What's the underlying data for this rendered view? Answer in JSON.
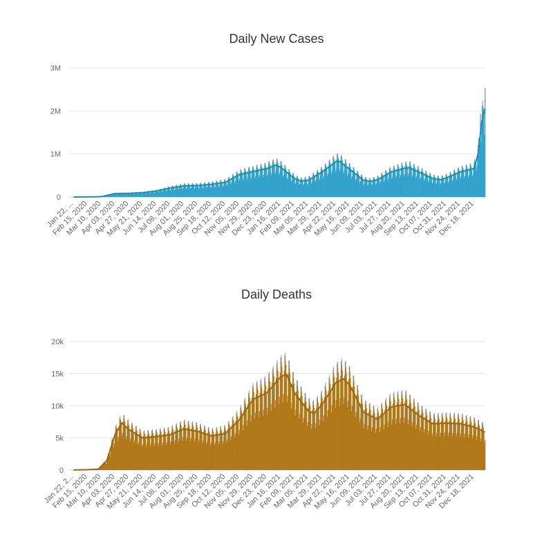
{
  "chart_data": [
    {
      "type": "bar",
      "title": "Daily New Cases",
      "xlabel": "",
      "ylabel": "",
      "ylim": [
        0,
        3000000
      ],
      "y_ticks": [
        "0",
        "1M",
        "2M",
        "3M"
      ],
      "y_tick_values": [
        0,
        1000000,
        2000000,
        3000000
      ],
      "x_tick_labels": [
        "Jan 22, ...",
        "Feb 15, 2020",
        "Mar 10, 2020",
        "Apr 03, 2020",
        "Apr 27, 2020",
        "May 21, 2020",
        "Jun 14, 2020",
        "Jul 08, 2020",
        "Aug 01, 2020",
        "Aug 25, 2020",
        "Sep 18, 2020",
        "Oct 12, 2020",
        "Nov 05, 2020",
        "Nov 29, 2020",
        "Dec 23, 2020",
        "Jan 16, 2021",
        "Feb 09, 2021",
        "Mar 05, 2021",
        "Mar 29, 2021",
        "Apr 22, 2021",
        "May 16, 2021",
        "Jun 09, 2021",
        "Jul 03, 2021",
        "Jul 27, 2021",
        "Aug 20, 2021",
        "Sep 13, 2021",
        "Oct 07, 2021",
        "Oct 31, 2021",
        "Nov 24, 2021",
        "Dec 18, 2021"
      ],
      "x_start": "Jan 22, 2020",
      "x_end": "Jan 06, 2022",
      "bar_color": "#33a3cc",
      "line_color": "#1b8fa8",
      "moving_average_keypoints": [
        [
          "Jan 22, 2020",
          500
        ],
        [
          "Feb 15, 2020",
          2000
        ],
        [
          "Mar 10, 2020",
          8000
        ],
        [
          "Apr 03, 2020",
          80000
        ],
        [
          "Apr 27, 2020",
          85000
        ],
        [
          "May 21, 2020",
          100000
        ],
        [
          "Jun 14, 2020",
          140000
        ],
        [
          "Jul 08, 2020",
          210000
        ],
        [
          "Aug 01, 2020",
          260000
        ],
        [
          "Aug 25, 2020",
          265000
        ],
        [
          "Sep 18, 2020",
          295000
        ],
        [
          "Oct 12, 2020",
          340000
        ],
        [
          "Nov 05, 2020",
          520000
        ],
        [
          "Nov 29, 2020",
          590000
        ],
        [
          "Dec 23, 2020",
          660000
        ],
        [
          "Jan 08, 2021",
          740000
        ],
        [
          "Jan 16, 2021",
          690000
        ],
        [
          "Feb 09, 2021",
          430000
        ],
        [
          "Feb 20, 2021",
          370000
        ],
        [
          "Mar 05, 2021",
          390000
        ],
        [
          "Mar 29, 2021",
          580000
        ],
        [
          "Apr 22, 2021",
          820000
        ],
        [
          "Apr 28, 2021",
          830000
        ],
        [
          "May 16, 2021",
          640000
        ],
        [
          "Jun 09, 2021",
          390000
        ],
        [
          "Jun 20, 2021",
          360000
        ],
        [
          "Jul 03, 2021",
          400000
        ],
        [
          "Jul 27, 2021",
          580000
        ],
        [
          "Aug 20, 2021",
          670000
        ],
        [
          "Aug 27, 2021",
          680000
        ],
        [
          "Sep 13, 2021",
          580000
        ],
        [
          "Oct 07, 2021",
          430000
        ],
        [
          "Oct 20, 2021",
          400000
        ],
        [
          "Oct 31, 2021",
          440000
        ],
        [
          "Nov 24, 2021",
          580000
        ],
        [
          "Dec 18, 2021",
          660000
        ],
        [
          "Dec 25, 2021",
          1000000
        ],
        [
          "Dec 31, 2021",
          1700000
        ],
        [
          "Jan 06, 2022",
          2050000
        ]
      ],
      "peak_bars": [
        [
          "Dec 29, 2021",
          1930000
        ],
        [
          "Jan 06, 2022",
          2530000
        ]
      ]
    },
    {
      "type": "bar",
      "title": "Daily Deaths",
      "xlabel": "",
      "ylabel": "",
      "ylim": [
        0,
        20000
      ],
      "y_ticks": [
        "0",
        "5k",
        "10k",
        "15k",
        "20k"
      ],
      "y_tick_values": [
        0,
        5000,
        10000,
        15000,
        20000
      ],
      "x_tick_labels": [
        "Jan 22, 2...",
        "Feb 15, 2020",
        "Mar 10, 2020",
        "Apr 03, 2020",
        "Apr 27, 2020",
        "May 21, 2020",
        "Jun 14, 2020",
        "Jul 08, 2020",
        "Aug 01, 2020",
        "Aug 25, 2020",
        "Sep 18, 2020",
        "Oct 12, 2020",
        "Nov 05, 2020",
        "Nov 29, 2020",
        "Dec 23, 2020",
        "Jan 16, 2021",
        "Feb 09, 2021",
        "Mar 05, 2021",
        "Mar 29, 2021",
        "Apr 22, 2021",
        "May 16, 2021",
        "Jun 09, 2021",
        "Jul 03, 2021",
        "Jul 27, 2021",
        "Aug 20, 2021",
        "Sep 13, 2021",
        "Oct 07, 2021",
        "Oct 31, 2021",
        "Nov 24, 2021",
        "Dec 18, 2021"
      ],
      "x_start": "Jan 22, 2020",
      "x_end": "Jan 06, 2022",
      "bar_color": "#b07818",
      "line_color": "#9b6410",
      "moving_average_keypoints": [
        [
          "Jan 22, 2020",
          10
        ],
        [
          "Feb 15, 2020",
          60
        ],
        [
          "Mar 05, 2020",
          150
        ],
        [
          "Mar 20, 2020",
          1500
        ],
        [
          "Apr 03, 2020",
          5500
        ],
        [
          "Apr 15, 2020",
          7300
        ],
        [
          "Apr 27, 2020",
          6300
        ],
        [
          "May 21, 2020",
          5000
        ],
        [
          "Jun 14, 2020",
          5200
        ],
        [
          "Jul 08, 2020",
          5500
        ],
        [
          "Aug 01, 2020",
          6400
        ],
        [
          "Aug 25, 2020",
          6000
        ],
        [
          "Sep 18, 2020",
          5300
        ],
        [
          "Oct 12, 2020",
          5700
        ],
        [
          "Nov 05, 2020",
          7800
        ],
        [
          "Nov 29, 2020",
          11000
        ],
        [
          "Dec 23, 2020",
          12000
        ],
        [
          "Jan 16, 2021",
          14500
        ],
        [
          "Jan 26, 2021",
          14900
        ],
        [
          "Feb 09, 2021",
          12000
        ],
        [
          "Mar 05, 2021",
          9200
        ],
        [
          "Mar 15, 2021",
          8800
        ],
        [
          "Mar 29, 2021",
          10200
        ],
        [
          "Apr 22, 2021",
          13600
        ],
        [
          "May 05, 2021",
          14200
        ],
        [
          "May 16, 2021",
          13200
        ],
        [
          "Jun 09, 2021",
          9000
        ],
        [
          "Jul 03, 2021",
          7900
        ],
        [
          "Jul 27, 2021",
          9800
        ],
        [
          "Aug 20, 2021",
          10200
        ],
        [
          "Sep 13, 2021",
          8500
        ],
        [
          "Oct 07, 2021",
          7200
        ],
        [
          "Oct 31, 2021",
          7300
        ],
        [
          "Nov 24, 2021",
          7200
        ],
        [
          "Dec 18, 2021",
          6700
        ],
        [
          "Jan 06, 2022",
          5900
        ]
      ]
    }
  ]
}
